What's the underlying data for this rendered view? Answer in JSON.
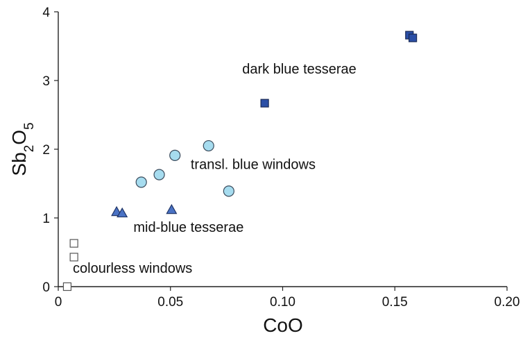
{
  "chart_data": {
    "type": "scatter",
    "title": "",
    "xlabel": "CoO",
    "ylabel": {
      "base": "Sb",
      "sub1": "2",
      "mid": "O",
      "sub2": "5"
    },
    "xlim": [
      0,
      0.2
    ],
    "ylim": [
      0,
      4
    ],
    "x_ticks": [
      {
        "value": 0,
        "label": "0"
      },
      {
        "value": 0.05,
        "label": "0.05"
      },
      {
        "value": 0.1,
        "label": "0.10"
      },
      {
        "value": 0.15,
        "label": "0.15"
      },
      {
        "value": 0.2,
        "label": "0.20"
      }
    ],
    "y_ticks": [
      {
        "value": 0,
        "label": "0"
      },
      {
        "value": 1,
        "label": "1"
      },
      {
        "value": 2,
        "label": "2"
      },
      {
        "value": 3,
        "label": "3"
      },
      {
        "value": 4,
        "label": "4"
      }
    ],
    "grid": false,
    "series": [
      {
        "name": "dark blue tesserae",
        "marker": "square",
        "fill": "#2b4fa6",
        "stroke": "#1a2a55",
        "label_pos": {
          "x": 0.082,
          "y": 3.1
        },
        "points": [
          [
            0.092,
            2.67
          ],
          [
            0.1565,
            3.66
          ],
          [
            0.158,
            3.62
          ]
        ]
      },
      {
        "name": "transl. blue windows",
        "marker": "circle",
        "fill": "#a6dcef",
        "stroke": "#3a4b5c",
        "label_pos": {
          "x": 0.059,
          "y": 1.71
        },
        "points": [
          [
            0.037,
            1.52
          ],
          [
            0.045,
            1.63
          ],
          [
            0.052,
            1.91
          ],
          [
            0.067,
            2.05
          ],
          [
            0.076,
            1.39
          ]
        ]
      },
      {
        "name": "mid-blue tesserae",
        "marker": "triangle",
        "fill": "#4a72c4",
        "stroke": "#1f3466",
        "label_pos": {
          "x": 0.0335,
          "y": 0.8
        },
        "points": [
          [
            0.026,
            1.09
          ],
          [
            0.0285,
            1.07
          ],
          [
            0.0505,
            1.12
          ]
        ]
      },
      {
        "name": "colourless windows",
        "marker": "square",
        "fill": "#ffffff",
        "stroke": "#555555",
        "label_pos": {
          "x": 0.0065,
          "y": 0.2
        },
        "points": [
          [
            0.004,
            0.0
          ],
          [
            0.007,
            0.43
          ],
          [
            0.007,
            0.63
          ]
        ]
      }
    ]
  }
}
